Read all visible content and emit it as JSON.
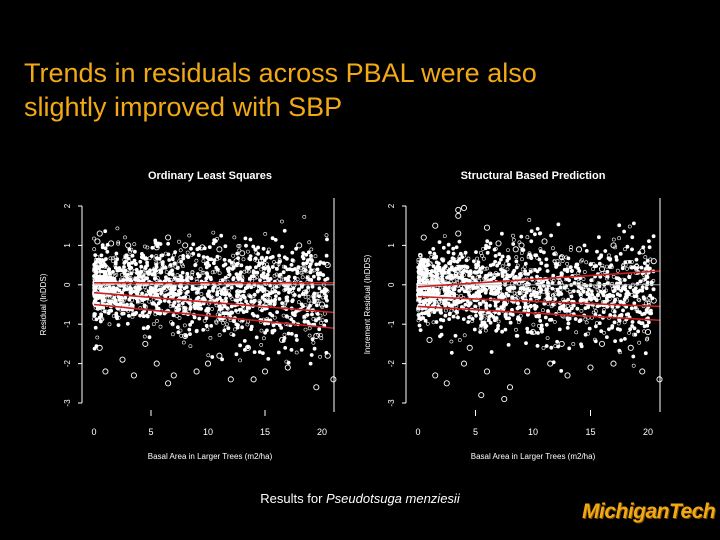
{
  "slide": {
    "title_line1": "Trends in residuals across PBAL were also",
    "title_line2": "slightly improved with SBP",
    "caption_prefix": "Results for ",
    "caption_species": "Pseudotsuga menziesii",
    "logo_text": "MichiganTech"
  },
  "colors": {
    "title": "#f2a916",
    "trend_lines": "#cc2020",
    "points": "#ffffff",
    "background": "#000000"
  },
  "chart_data": [
    {
      "type": "scatter",
      "title": "Ordinary Least Squares",
      "xlabel": "Basal Area in Larger Trees (m2/ha)",
      "ylabel": "Residual (lnDDS)",
      "xlim": [
        0,
        20
      ],
      "ylim": [
        -3,
        2
      ],
      "xticks": [
        0,
        5,
        10,
        15,
        20
      ],
      "yticks": [
        -3,
        -2,
        -1,
        0,
        1,
        2
      ],
      "reference_line_y": 0,
      "trend_lines": [
        {
          "x": [
            0,
            21
          ],
          "y": [
            0.05,
            0.05
          ]
        },
        {
          "x": [
            0,
            21
          ],
          "y": [
            -0.2,
            -0.7
          ]
        },
        {
          "x": [
            0,
            21
          ],
          "y": [
            -0.5,
            -1.1
          ]
        }
      ],
      "points": [
        [
          0.5,
          1.3
        ],
        [
          0.3,
          1.1
        ],
        [
          1.5,
          1.05
        ],
        [
          5.5,
          0.95
        ],
        [
          6.5,
          1.2
        ],
        [
          9.5,
          0.95
        ],
        [
          11,
          0.9
        ],
        [
          13,
          0.8
        ],
        [
          18,
          1.0
        ],
        [
          19,
          0.6
        ],
        [
          2.5,
          -1.9
        ],
        [
          3.5,
          -2.3
        ],
        [
          5.5,
          -2.0
        ],
        [
          7,
          -2.3
        ],
        [
          9,
          -2.2
        ],
        [
          10,
          -2.0
        ],
        [
          12,
          -2.4
        ],
        [
          14,
          -2.4
        ],
        [
          15,
          -2.2
        ],
        [
          17,
          -2.1
        ],
        [
          20.5,
          -1.8
        ],
        [
          21,
          -2.4
        ],
        [
          19.5,
          -1.3
        ],
        [
          20.5,
          0.5
        ],
        [
          20,
          -0.5
        ],
        [
          16.5,
          -1.4
        ],
        [
          17.5,
          0.0
        ],
        [
          18.5,
          -0.2
        ],
        [
          13.5,
          -1.6
        ],
        [
          11,
          -1.8
        ],
        [
          8,
          -1.3
        ],
        [
          4.5,
          -1.5
        ],
        [
          1,
          -2.2
        ],
        [
          0.5,
          -1.6
        ],
        [
          3,
          1.0
        ],
        [
          8,
          1.0
        ],
        [
          12.5,
          0.6
        ],
        [
          16,
          0.5
        ],
        [
          19.5,
          -2.6
        ],
        [
          6.5,
          -2.5
        ]
      ]
    },
    {
      "type": "scatter",
      "title": "Structural Based Prediction",
      "xlabel": "Basal Area in Larger Trees (m2/ha)",
      "ylabel": "Increment Residual (lnDDS)",
      "xlim": [
        0,
        20
      ],
      "ylim": [
        -3,
        2
      ],
      "xticks": [
        0,
        5,
        10,
        15,
        20
      ],
      "yticks": [
        -3,
        -2,
        -1,
        0,
        1,
        2
      ],
      "reference_line_y": 0,
      "trend_lines": [
        {
          "x": [
            0,
            21
          ],
          "y": [
            -0.05,
            0.35
          ]
        },
        {
          "x": [
            0,
            21
          ],
          "y": [
            -0.3,
            -0.55
          ]
        },
        {
          "x": [
            0,
            21
          ],
          "y": [
            -0.55,
            -0.9
          ]
        }
      ],
      "points": [
        [
          3.5,
          1.9
        ],
        [
          4,
          1.95
        ],
        [
          3.5,
          1.75
        ],
        [
          1.5,
          1.5
        ],
        [
          6,
          1.45
        ],
        [
          0.5,
          1.2
        ],
        [
          3.5,
          1.3
        ],
        [
          7,
          1.05
        ],
        [
          9,
          1.0
        ],
        [
          11,
          1.1
        ],
        [
          14,
          0.9
        ],
        [
          17,
          1.0
        ],
        [
          19.5,
          0.85
        ],
        [
          20.5,
          0.6
        ],
        [
          19,
          0.45
        ],
        [
          1.5,
          -2.3
        ],
        [
          2.5,
          -2.5
        ],
        [
          4,
          -2.0
        ],
        [
          6,
          -2.2
        ],
        [
          8,
          -2.6
        ],
        [
          9.5,
          -2.2
        ],
        [
          11.5,
          -2.0
        ],
        [
          13,
          -2.3
        ],
        [
          15,
          -2.1
        ],
        [
          17,
          -2.0
        ],
        [
          19.5,
          -2.2
        ],
        [
          21,
          -2.4
        ],
        [
          18.5,
          -1.6
        ],
        [
          20,
          -1.2
        ],
        [
          20.5,
          -0.4
        ],
        [
          16,
          -1.5
        ],
        [
          12.5,
          -1.5
        ],
        [
          10,
          -1.2
        ],
        [
          7.5,
          -2.9
        ],
        [
          5.5,
          -2.8
        ],
        [
          1,
          -1.4
        ],
        [
          4.5,
          -1.6
        ],
        [
          16,
          0.4
        ],
        [
          12.5,
          0.7
        ],
        [
          8.5,
          0.9
        ]
      ]
    }
  ]
}
